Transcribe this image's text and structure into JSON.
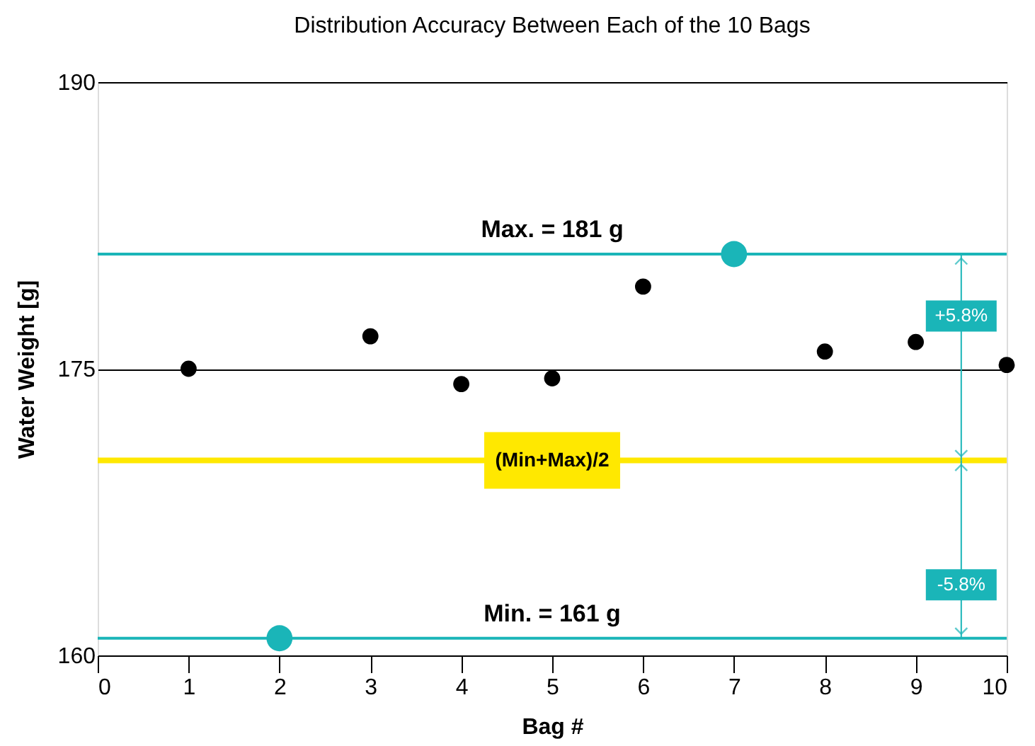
{
  "chart_data": {
    "type": "scatter",
    "title": "Distribution Accuracy Between Each of the 10 Bags",
    "xlabel": "Bag #",
    "ylabel": "Water Weight [g]",
    "x": [
      1,
      2,
      3,
      4,
      5,
      6,
      7,
      8,
      9,
      10
    ],
    "series": [
      {
        "color": "#000000",
        "values": [
          175.0,
          null,
          176.7,
          174.2,
          174.5,
          179.3,
          null,
          175.9,
          176.4,
          175.2
        ]
      },
      {
        "color": "#1ab5b8",
        "values": [
          null,
          160.9,
          null,
          null,
          null,
          null,
          181.0,
          null,
          null,
          null
        ]
      }
    ],
    "marker": "circle",
    "xlim": [
      0,
      10
    ],
    "xticks": [
      0,
      1,
      2,
      3,
      4,
      5,
      6,
      7,
      8,
      9,
      10
    ],
    "ylim": [
      160,
      190
    ],
    "yticks": [
      160,
      175,
      190
    ],
    "grid": "y",
    "legend": false,
    "ref_lines": [
      {
        "axis": "y",
        "value": 181,
        "label": "Max. = 181 g",
        "color": "#1ab5b8"
      },
      {
        "axis": "y",
        "value": 160.9,
        "label": "Min. = 161 g",
        "color": "#1ab5b8"
      },
      {
        "axis": "y",
        "value": 170.2,
        "label": "(Min+Max)/2",
        "color": "#ffe800"
      }
    ],
    "annotations": [
      "+5.8%",
      "-5.8%"
    ]
  }
}
